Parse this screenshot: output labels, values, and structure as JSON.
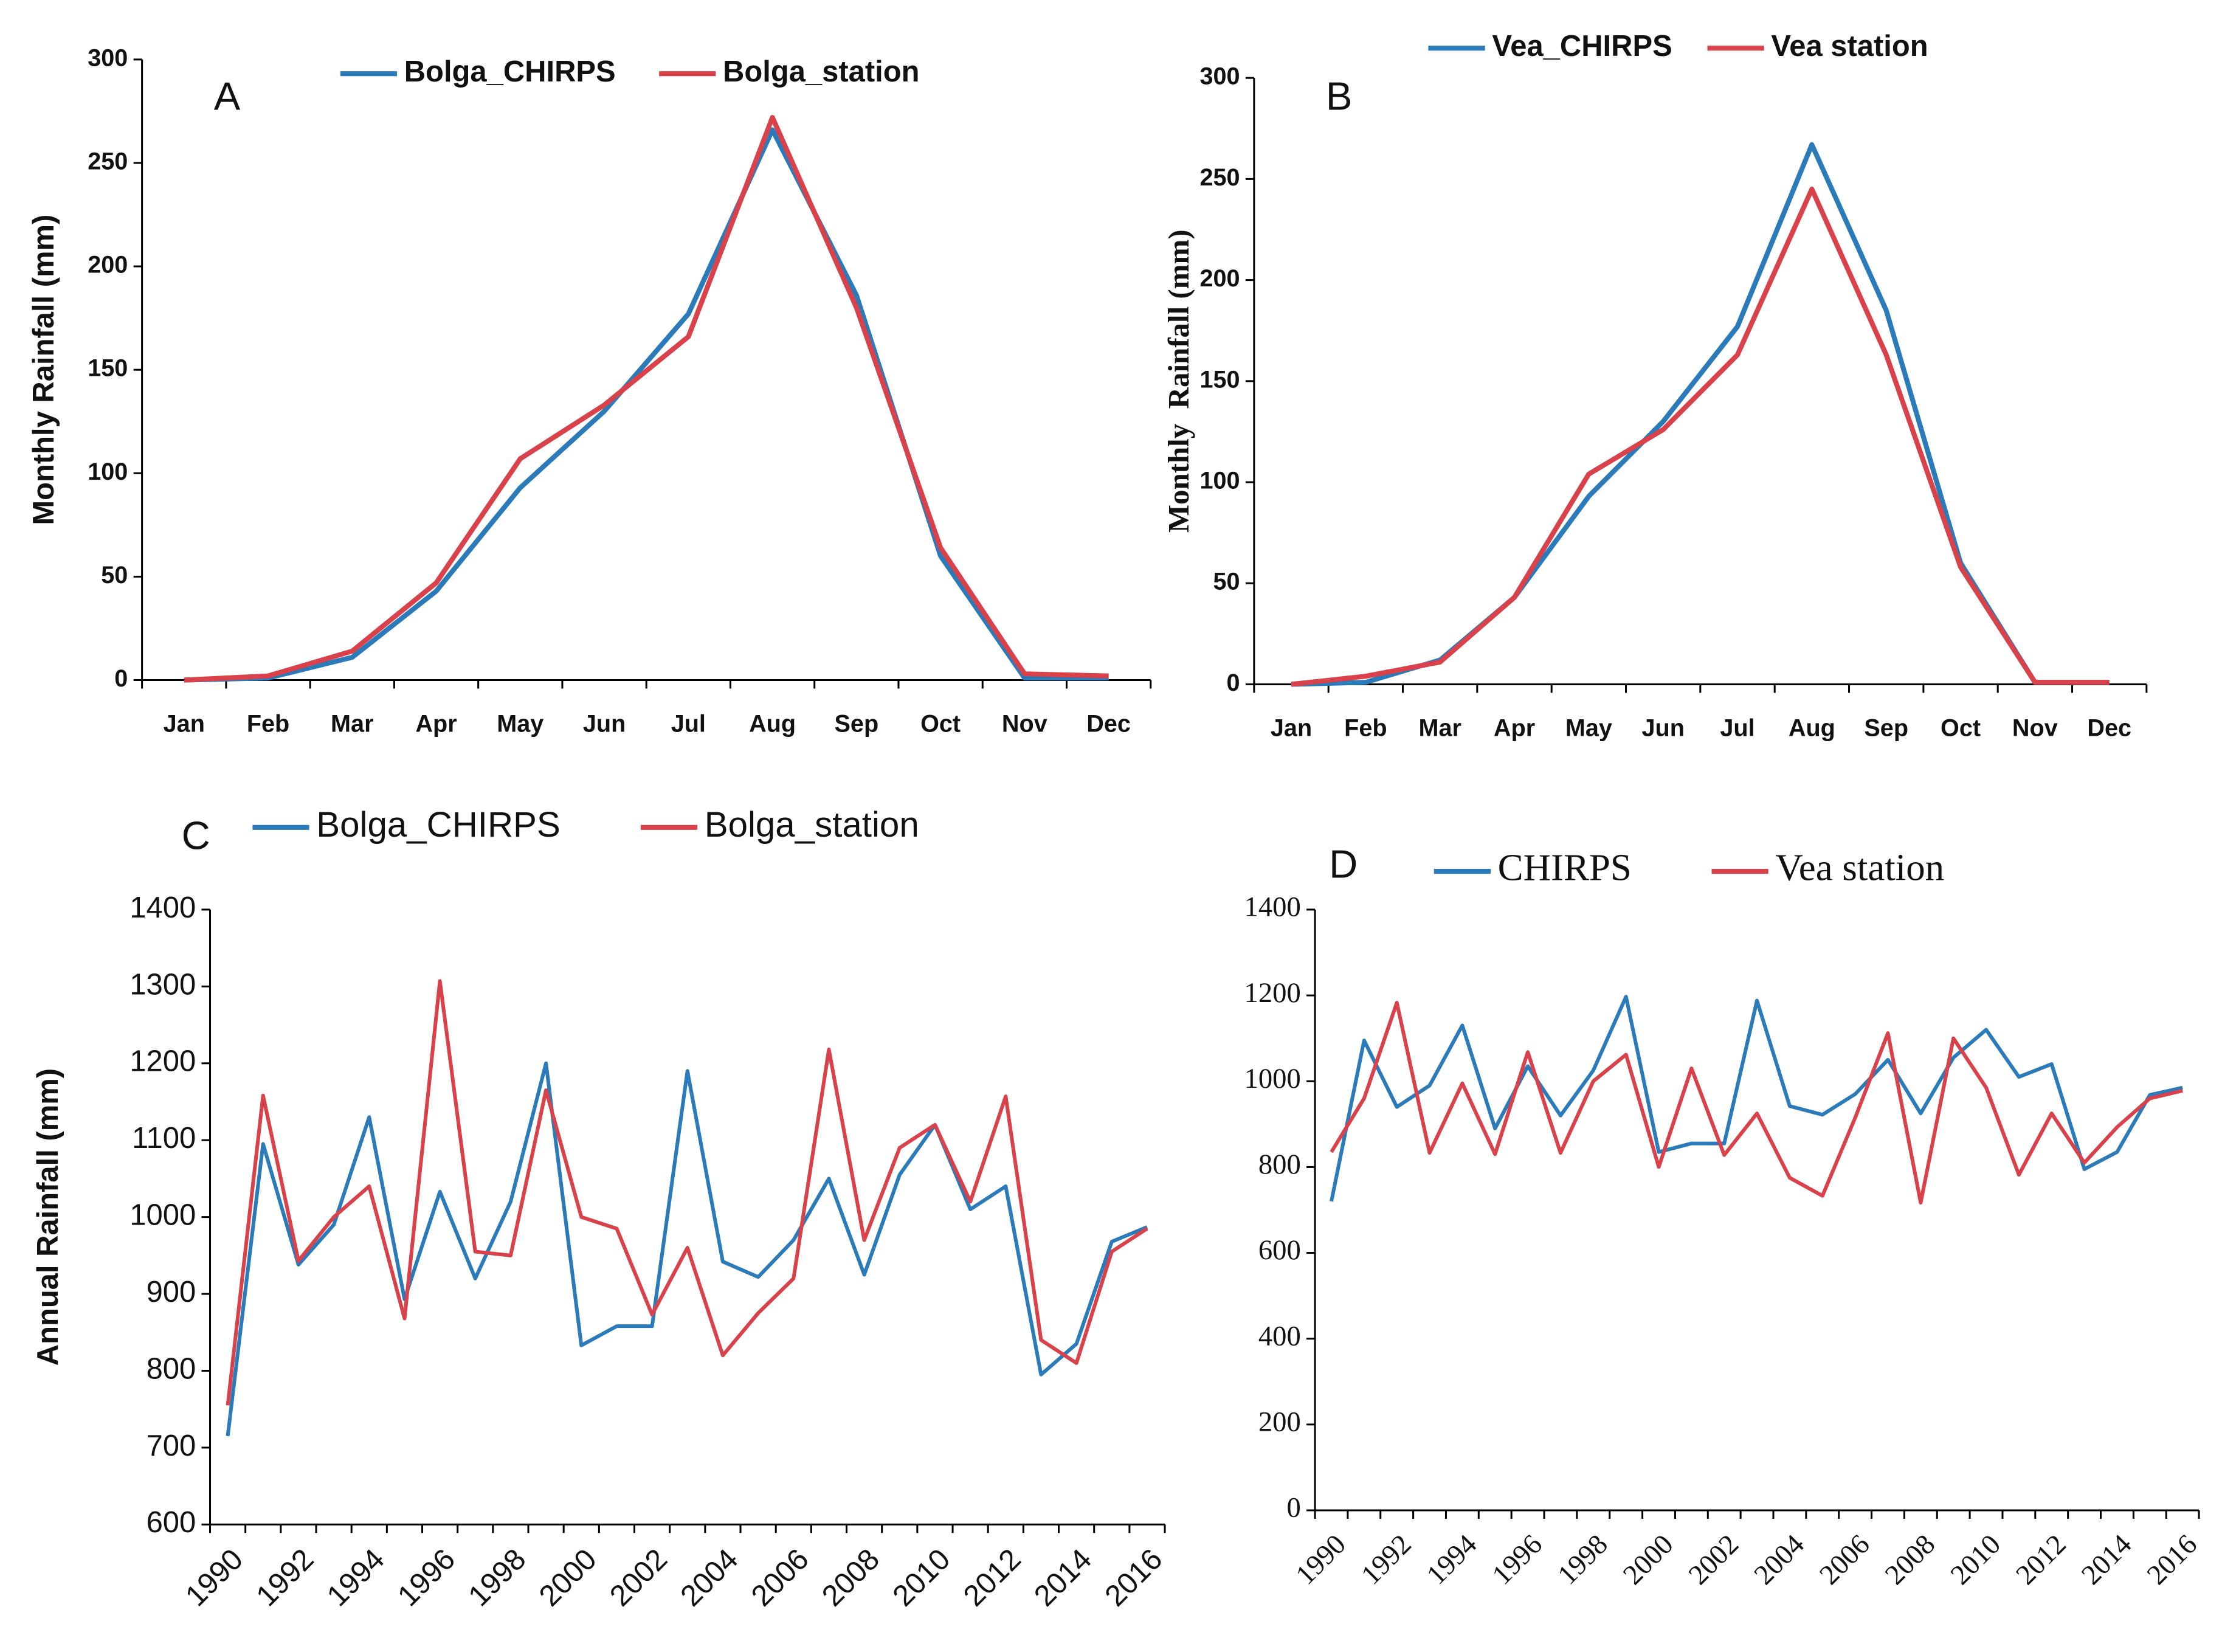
{
  "chart_data": [
    {
      "type": "line",
      "panel_label": "A",
      "y_label": "Monthly Rainfall (mm)",
      "legend": "top",
      "categories": [
        "Jan",
        "Feb",
        "Mar",
        "Apr",
        "May",
        "Jun",
        "Jul",
        "Aug",
        "Sep",
        "Oct",
        "Nov",
        "Dec"
      ],
      "series": [
        {
          "name": "Bolga_CHIRPS",
          "color": "#2b7bba",
          "values": [
            0,
            1,
            11,
            43,
            93,
            130,
            177,
            266,
            186,
            60,
            1,
            1
          ]
        },
        {
          "name": "Bolga_station",
          "color": "#d9424a",
          "values": [
            0,
            2,
            14,
            47,
            107,
            133,
            166,
            272,
            180,
            64,
            3,
            2
          ]
        }
      ],
      "ylim": [
        0,
        300
      ],
      "yticks": [
        0,
        50,
        100,
        150,
        200,
        250,
        300
      ]
    },
    {
      "type": "line",
      "panel_label": "B",
      "y_label": "Monthly  Rainfall (mm)",
      "legend": "top",
      "categories": [
        "Jan",
        "Feb",
        "Mar",
        "Apr",
        "May",
        "Jun",
        "Jul",
        "Aug",
        "Sep",
        "Oct",
        "Nov",
        "Dec"
      ],
      "series": [
        {
          "name": "Vea_CHIRPS",
          "color": "#2b7bba",
          "values": [
            0,
            1,
            12,
            43,
            93,
            130,
            177,
            267,
            185,
            60,
            1,
            1
          ]
        },
        {
          "name": "Vea station",
          "color": "#d9424a",
          "values": [
            0,
            4,
            11,
            43,
            104,
            126,
            163,
            245,
            163,
            58,
            1,
            1
          ]
        }
      ],
      "ylim": [
        0,
        300
      ],
      "yticks": [
        0,
        50,
        100,
        150,
        200,
        250,
        300
      ]
    },
    {
      "type": "line",
      "panel_label": "C",
      "y_label": "Annual Rainfall (mm)",
      "legend": "top",
      "categories": [
        "1990",
        null,
        "1992",
        null,
        "1994",
        null,
        "1996",
        null,
        "1998",
        null,
        "2000",
        null,
        "2002",
        null,
        "2004",
        null,
        "2006",
        null,
        "2008",
        null,
        "2010",
        null,
        "2012",
        null,
        "2014",
        null,
        "2016"
      ],
      "series": [
        {
          "name": "Bolga_CHIRPS",
          "color": "#2b7bba",
          "values": [
            715,
            1095,
            938,
            990,
            1130,
            893,
            1033,
            920,
            1020,
            1200,
            833,
            858,
            858,
            1190,
            942,
            922,
            970,
            1050,
            925,
            1055,
            1120,
            1010,
            1040,
            795,
            835,
            968,
            987
          ]
        },
        {
          "name": "Bolga_station",
          "color": "#d9424a",
          "values": [
            755,
            1158,
            943,
            1000,
            1040,
            868,
            1307,
            955,
            950,
            1165,
            1000,
            985,
            873,
            960,
            820,
            875,
            920,
            1218,
            970,
            1090,
            1120,
            1020,
            1157,
            840,
            810,
            955,
            985
          ]
        }
      ],
      "ylim": [
        600,
        1400
      ],
      "yticks": [
        600,
        700,
        800,
        900,
        1000,
        1100,
        1200,
        1300,
        1400
      ]
    },
    {
      "type": "line",
      "panel_label": "D",
      "legend": "top",
      "categories": [
        "1990",
        null,
        "1992",
        null,
        "1994",
        null,
        "1996",
        null,
        "1998",
        null,
        "2000",
        null,
        "2002",
        null,
        "2004",
        null,
        "2006",
        null,
        "2008",
        null,
        "2010",
        null,
        "2012",
        null,
        "2014",
        null,
        "2016"
      ],
      "series": [
        {
          "name": "CHIRPS",
          "color": "#2b7bba",
          "values": [
            720,
            1095,
            940,
            990,
            1130,
            890,
            1035,
            920,
            1025,
            1197,
            835,
            855,
            855,
            1188,
            942,
            922,
            970,
            1050,
            925,
            1055,
            1120,
            1010,
            1040,
            795,
            835,
            968,
            985
          ]
        },
        {
          "name": "Vea station",
          "color": "#d9424a",
          "values": [
            835,
            960,
            1183,
            833,
            995,
            830,
            1068,
            833,
            1000,
            1062,
            800,
            1030,
            828,
            925,
            775,
            733,
            915,
            1112,
            717,
            1100,
            985,
            782,
            925,
            810,
            893,
            960,
            978
          ]
        }
      ],
      "ylim": [
        0,
        1400
      ],
      "yticks": [
        0,
        200,
        400,
        600,
        800,
        1000,
        1200,
        1400
      ]
    }
  ]
}
